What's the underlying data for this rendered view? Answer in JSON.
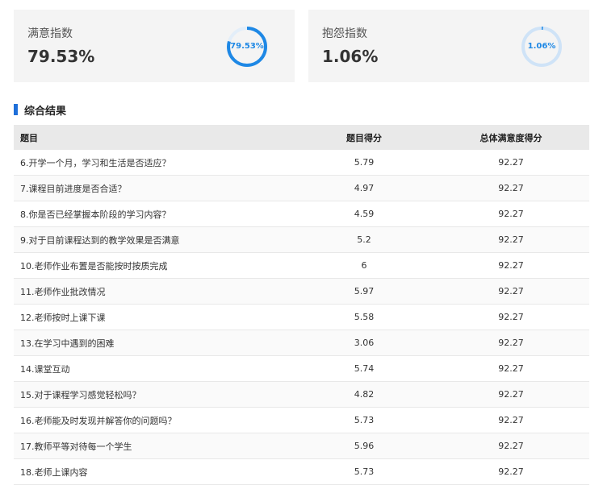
{
  "cards": [
    {
      "label": "满意指数",
      "value": "79.53%",
      "ring_text": "79.53%",
      "ring_fraction": 0.7953,
      "ring_color": "#1e88e5",
      "track_color": "#e3eef9"
    },
    {
      "label": "抱怨指数",
      "value": "1.06%",
      "ring_text": "1.06%",
      "ring_fraction": 0.0106,
      "ring_color": "#1e88e5",
      "track_color": "#cfe3f7"
    }
  ],
  "section": {
    "title": "综合结果"
  },
  "table": {
    "headers": [
      "题目",
      "题目得分",
      "总体满意度得分"
    ],
    "rows": [
      [
        "6.开学一个月，学习和生活是否适应？",
        "5.79",
        "92.27"
      ],
      [
        "7.课程目前进度是否合适？",
        "4.97",
        "92.27"
      ],
      [
        "8.你是否已经掌握本阶段的学习内容？",
        "4.59",
        "92.27"
      ],
      [
        "9.对于目前课程达到的教学效果是否满意",
        "5.2",
        "92.27"
      ],
      [
        "10.老师作业布置是否能按时按质完成",
        "6",
        "92.27"
      ],
      [
        "11.老师作业批改情况",
        "5.97",
        "92.27"
      ],
      [
        "12.老师按时上课下课",
        "5.58",
        "92.27"
      ],
      [
        "13.在学习中遇到的困难",
        "3.06",
        "92.27"
      ],
      [
        "14.课堂互动",
        "5.74",
        "92.27"
      ],
      [
        "15.对于课程学习感觉轻松吗？",
        "4.82",
        "92.27"
      ],
      [
        "16.老师能及时发现并解答你的问题吗？",
        "5.73",
        "92.27"
      ],
      [
        "17.教师平等对待每一个学生",
        "5.96",
        "92.27"
      ],
      [
        "18.老师上课内容",
        "5.73",
        "92.27"
      ]
    ]
  }
}
